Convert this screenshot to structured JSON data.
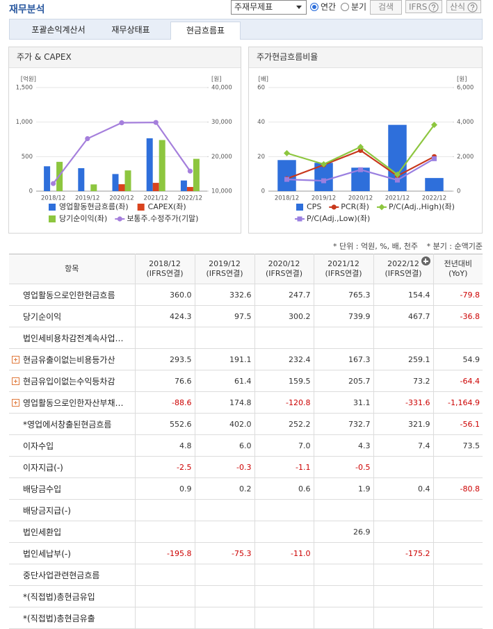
{
  "header": {
    "title": "재무분석",
    "select": "주재무제표",
    "radios": [
      "연간",
      "분기"
    ],
    "radio_selected": 0,
    "buttons": [
      "검색",
      "IFRS",
      "산식"
    ]
  },
  "tabs": {
    "items": [
      "포괄손익계산서",
      "재무상태표",
      "현금흐름표"
    ],
    "active": 2
  },
  "chart_data": [
    {
      "type": "combo",
      "title": "주가 & CAPEX",
      "y_unit": "[억원]",
      "y2_unit": "[원]",
      "categories": [
        "2018/12",
        "2019/12",
        "2020/12",
        "2021/12",
        "2022/12"
      ],
      "series": [
        {
          "name": "영업활동현금흐름(좌)",
          "type": "bar",
          "color": "#2e6fdb",
          "values": [
            360.0,
            332.6,
            247.7,
            765.3,
            154.4
          ]
        },
        {
          "name": "CAPEX(좌)",
          "type": "bar",
          "color": "#d9431e",
          "values": [
            null,
            null,
            100,
            120,
            60
          ]
        },
        {
          "name": "당기순이익(좌)",
          "type": "bar",
          "color": "#8dc63f",
          "values": [
            424.3,
            97.5,
            300.2,
            739.9,
            467.7
          ]
        },
        {
          "name": "보통주.수정주가(기말)",
          "type": "line",
          "axis": "y2",
          "marker": "circle",
          "color": "#a57fdc",
          "values": [
            12200,
            25200,
            29800,
            29900,
            15800
          ]
        }
      ],
      "ylim": [
        0,
        1500
      ],
      "yticks": [
        0,
        500,
        {
          "value": 1000,
          "label": "1,000"
        },
        {
          "value": 1500,
          "label": "1,500"
        }
      ],
      "y2lim": [
        10000,
        40000
      ],
      "y2ticks": [
        {
          "value": 10000,
          "label": "10,000"
        },
        {
          "value": 20000,
          "label": "20,000"
        },
        {
          "value": 30000,
          "label": "30,000"
        },
        {
          "value": 40000,
          "label": "40,000"
        }
      ],
      "grid": true
    },
    {
      "type": "combo",
      "title": "주가현금흐름비율",
      "y_unit": "[배]",
      "y2_unit": "[원]",
      "categories": [
        "2018/12",
        "2019/12",
        "2020/12",
        "2021/12",
        "2022/12"
      ],
      "series": [
        {
          "name": "CPS",
          "type": "bar",
          "axis": "y2",
          "color": "#2e6fdb",
          "values": [
            1800,
            1640,
            1360,
            3840,
            760
          ]
        },
        {
          "name": "PCR(좌)",
          "type": "line",
          "marker": "circle",
          "color": "#c8381c",
          "values": [
            7.2,
            15.2,
            23.6,
            8.8,
            20.0
          ]
        },
        {
          "name": "P/C(Adj.,High)(좌)",
          "type": "line",
          "marker": "diamond",
          "color": "#8dc63f",
          "values": [
            22.0,
            15.6,
            25.6,
            9.6,
            38.4
          ]
        },
        {
          "name": "P/C(Adj.,Low)(좌)",
          "type": "line",
          "marker": "square",
          "color": "#9a7fe0",
          "values": [
            6.8,
            6.0,
            12.4,
            6.4,
            18.8
          ]
        }
      ],
      "ylim": [
        0,
        60
      ],
      "yticks": [
        0,
        20,
        40,
        60
      ],
      "y2lim": [
        0,
        6000
      ],
      "y2ticks": [
        0,
        {
          "value": 2000,
          "label": "2,000"
        },
        {
          "value": 4000,
          "label": "4,000"
        },
        {
          "value": 6000,
          "label": "6,000"
        }
      ],
      "grid": true
    }
  ],
  "notes": [
    "* 단위 : 억원, %, 배, 천주",
    "* 분기 : 순액기준"
  ],
  "table": {
    "columns": [
      [
        "항목"
      ],
      [
        "2018/12",
        "(IFRS연결)"
      ],
      [
        "2019/12",
        "(IFRS연결)"
      ],
      [
        "2020/12",
        "(IFRS연결)"
      ],
      [
        "2021/12",
        "(IFRS연결)"
      ],
      [
        "2022/12",
        "(IFRS연결)"
      ],
      [
        "전년대비",
        "(YoY)"
      ]
    ],
    "rows": [
      {
        "label": "영업활동으로인한현금흐름",
        "cells": [
          "360.0",
          "332.6",
          "247.7",
          "765.3",
          "154.4",
          "-79.8"
        ]
      },
      {
        "label": "당기순이익",
        "cells": [
          "424.3",
          "97.5",
          "300.2",
          "739.9",
          "467.7",
          "-36.8"
        ]
      },
      {
        "label": "법인세비용차감전계속사업…",
        "cells": [
          null,
          null,
          null,
          null,
          null,
          null
        ]
      },
      {
        "label": "현금유출이없는비용등가산",
        "expand": true,
        "cells": [
          "293.5",
          "191.1",
          "232.4",
          "167.3",
          "259.1",
          "54.9"
        ]
      },
      {
        "label": "현금유입이없는수익등차감",
        "expand": true,
        "cells": [
          "76.6",
          "61.4",
          "159.5",
          "205.7",
          "73.2",
          "-64.4"
        ]
      },
      {
        "label": "영업활동으로인한자산부채…",
        "expand": true,
        "cells": [
          "-88.6",
          "174.8",
          "-120.8",
          "31.1",
          "-331.6",
          "-1,164.9"
        ]
      },
      {
        "label": "*영업에서창출된현금흐름",
        "cells": [
          "552.6",
          "402.0",
          "252.2",
          "732.7",
          "321.9",
          "-56.1"
        ]
      },
      {
        "label": "이자수입",
        "cells": [
          "4.8",
          "6.0",
          "7.0",
          "4.3",
          "7.4",
          "73.5"
        ]
      },
      {
        "label": "이자지급(-)",
        "cells": [
          "-2.5",
          "-0.3",
          "-1.1",
          "-0.5",
          null,
          null
        ]
      },
      {
        "label": "배당금수입",
        "cells": [
          "0.9",
          "0.2",
          "0.6",
          "1.9",
          "0.4",
          "-80.8"
        ]
      },
      {
        "label": "배당금지급(-)",
        "cells": [
          null,
          null,
          null,
          null,
          null,
          null
        ]
      },
      {
        "label": "법인세환입",
        "cells": [
          null,
          null,
          null,
          "26.9",
          null,
          null
        ]
      },
      {
        "label": "법인세납부(-)",
        "cells": [
          "-195.8",
          "-75.3",
          "-11.0",
          null,
          "-175.2",
          null
        ]
      },
      {
        "label": "중단사업관련현금흐름",
        "cells": [
          null,
          null,
          null,
          null,
          null,
          null
        ]
      },
      {
        "label": "*(직접법)총현금유입",
        "cells": [
          null,
          null,
          null,
          null,
          null,
          null
        ]
      },
      {
        "label": "*(직접법)총현금유출",
        "cells": [
          null,
          null,
          null,
          null,
          null,
          null
        ]
      }
    ]
  }
}
